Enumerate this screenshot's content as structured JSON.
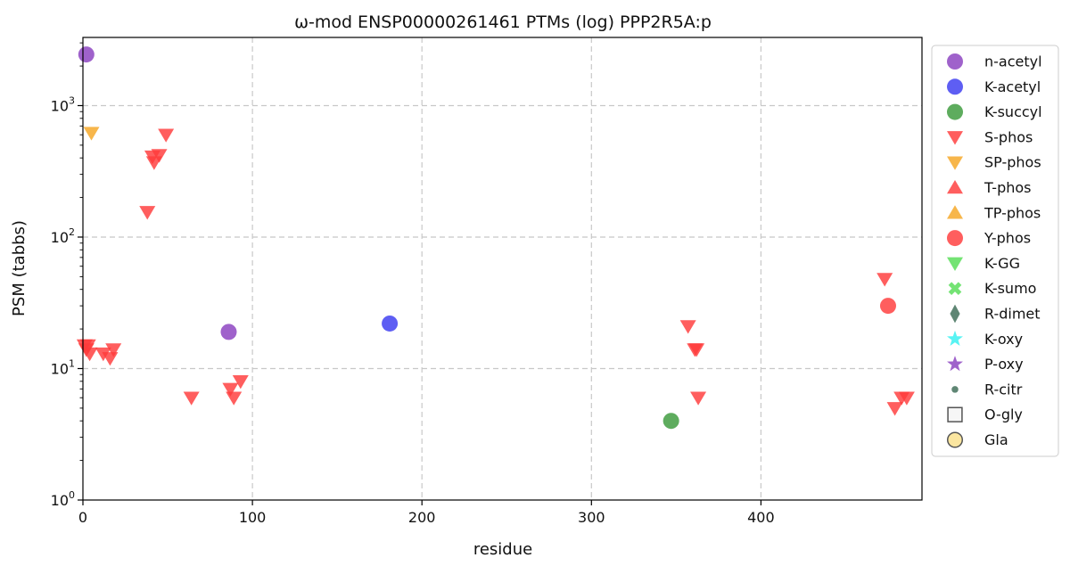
{
  "chart_data": {
    "type": "scatter",
    "title": "ω-mod ENSP00000261461 PTMs (log) PPP2R5A:p",
    "xlabel": "residue",
    "ylabel": "PSM (tabbs)",
    "x_scale": "linear",
    "y_scale": "log",
    "xlim": [
      0,
      495
    ],
    "ylim": [
      1,
      3300
    ],
    "x_ticks": [
      {
        "value": 0,
        "label": "0"
      },
      {
        "value": 100,
        "label": "100"
      },
      {
        "value": 200,
        "label": "200"
      },
      {
        "value": 300,
        "label": "300"
      },
      {
        "value": 400,
        "label": "400"
      }
    ],
    "y_ticks": [
      {
        "value": 1,
        "base": "10",
        "exp": "0"
      },
      {
        "value": 10,
        "base": "10",
        "exp": "1"
      },
      {
        "value": 100,
        "base": "10",
        "exp": "2"
      },
      {
        "value": 1000,
        "base": "10",
        "exp": "3"
      }
    ],
    "grid": true,
    "legend_position": "outside-right",
    "series": [
      {
        "name": "n-acetyl",
        "marker": "circle",
        "color": "#8a3fbf",
        "points": [
          {
            "x": 2,
            "y": 2450
          },
          {
            "x": 86,
            "y": 19
          }
        ]
      },
      {
        "name": "K-acetyl",
        "marker": "circle",
        "color": "#3a3af0",
        "points": [
          {
            "x": 181,
            "y": 22
          }
        ]
      },
      {
        "name": "K-succyl",
        "marker": "circle",
        "color": "#3a9a3a",
        "points": [
          {
            "x": 347,
            "y": 4
          }
        ]
      },
      {
        "name": "S-phos",
        "marker": "triangle-down",
        "color": "#ff3b3b",
        "points": [
          {
            "x": 1,
            "y": 15
          },
          {
            "x": 2,
            "y": 14
          },
          {
            "x": 3,
            "y": 15
          },
          {
            "x": 4,
            "y": 13
          },
          {
            "x": 12,
            "y": 13
          },
          {
            "x": 16,
            "y": 12
          },
          {
            "x": 18,
            "y": 14
          },
          {
            "x": 38,
            "y": 155
          },
          {
            "x": 41,
            "y": 410
          },
          {
            "x": 42,
            "y": 370
          },
          {
            "x": 45,
            "y": 420
          },
          {
            "x": 49,
            "y": 600
          },
          {
            "x": 64,
            "y": 6
          },
          {
            "x": 87,
            "y": 7
          },
          {
            "x": 89,
            "y": 6
          },
          {
            "x": 93,
            "y": 8
          },
          {
            "x": 357,
            "y": 21
          },
          {
            "x": 361,
            "y": 14
          },
          {
            "x": 362,
            "y": 14
          },
          {
            "x": 363,
            "y": 6
          },
          {
            "x": 473,
            "y": 48
          },
          {
            "x": 479,
            "y": 5
          },
          {
            "x": 483,
            "y": 6
          },
          {
            "x": 486,
            "y": 6
          }
        ]
      },
      {
        "name": "SP-phos",
        "marker": "triangle-down",
        "color": "#f5a623",
        "points": [
          {
            "x": 5,
            "y": 620
          }
        ]
      },
      {
        "name": "T-phos",
        "marker": "triangle-up",
        "color": "#ff3b3b",
        "points": []
      },
      {
        "name": "TP-phos",
        "marker": "triangle-up",
        "color": "#f5a623",
        "points": []
      },
      {
        "name": "Y-phos",
        "marker": "circle",
        "color": "#ff3b3b",
        "points": [
          {
            "x": 475,
            "y": 30
          }
        ]
      },
      {
        "name": "K-GG",
        "marker": "triangle-down",
        "color": "#55dd55",
        "points": []
      },
      {
        "name": "K-sumo",
        "marker": "x",
        "color": "#55dd55",
        "points": []
      },
      {
        "name": "R-dimet",
        "marker": "diamond",
        "color": "#3c6b55",
        "points": []
      },
      {
        "name": "K-oxy",
        "marker": "star",
        "color": "#33f0f0",
        "points": []
      },
      {
        "name": "P-oxy",
        "marker": "star",
        "color": "#8a3fbf",
        "points": []
      },
      {
        "name": "R-citr",
        "marker": "small-circle",
        "color": "#3c6b55",
        "points": []
      },
      {
        "name": "O-gly",
        "marker": "square-open",
        "color": "#555555",
        "points": []
      },
      {
        "name": "Gla",
        "marker": "circle-open",
        "color": "#fbe6a0",
        "points": []
      }
    ]
  }
}
